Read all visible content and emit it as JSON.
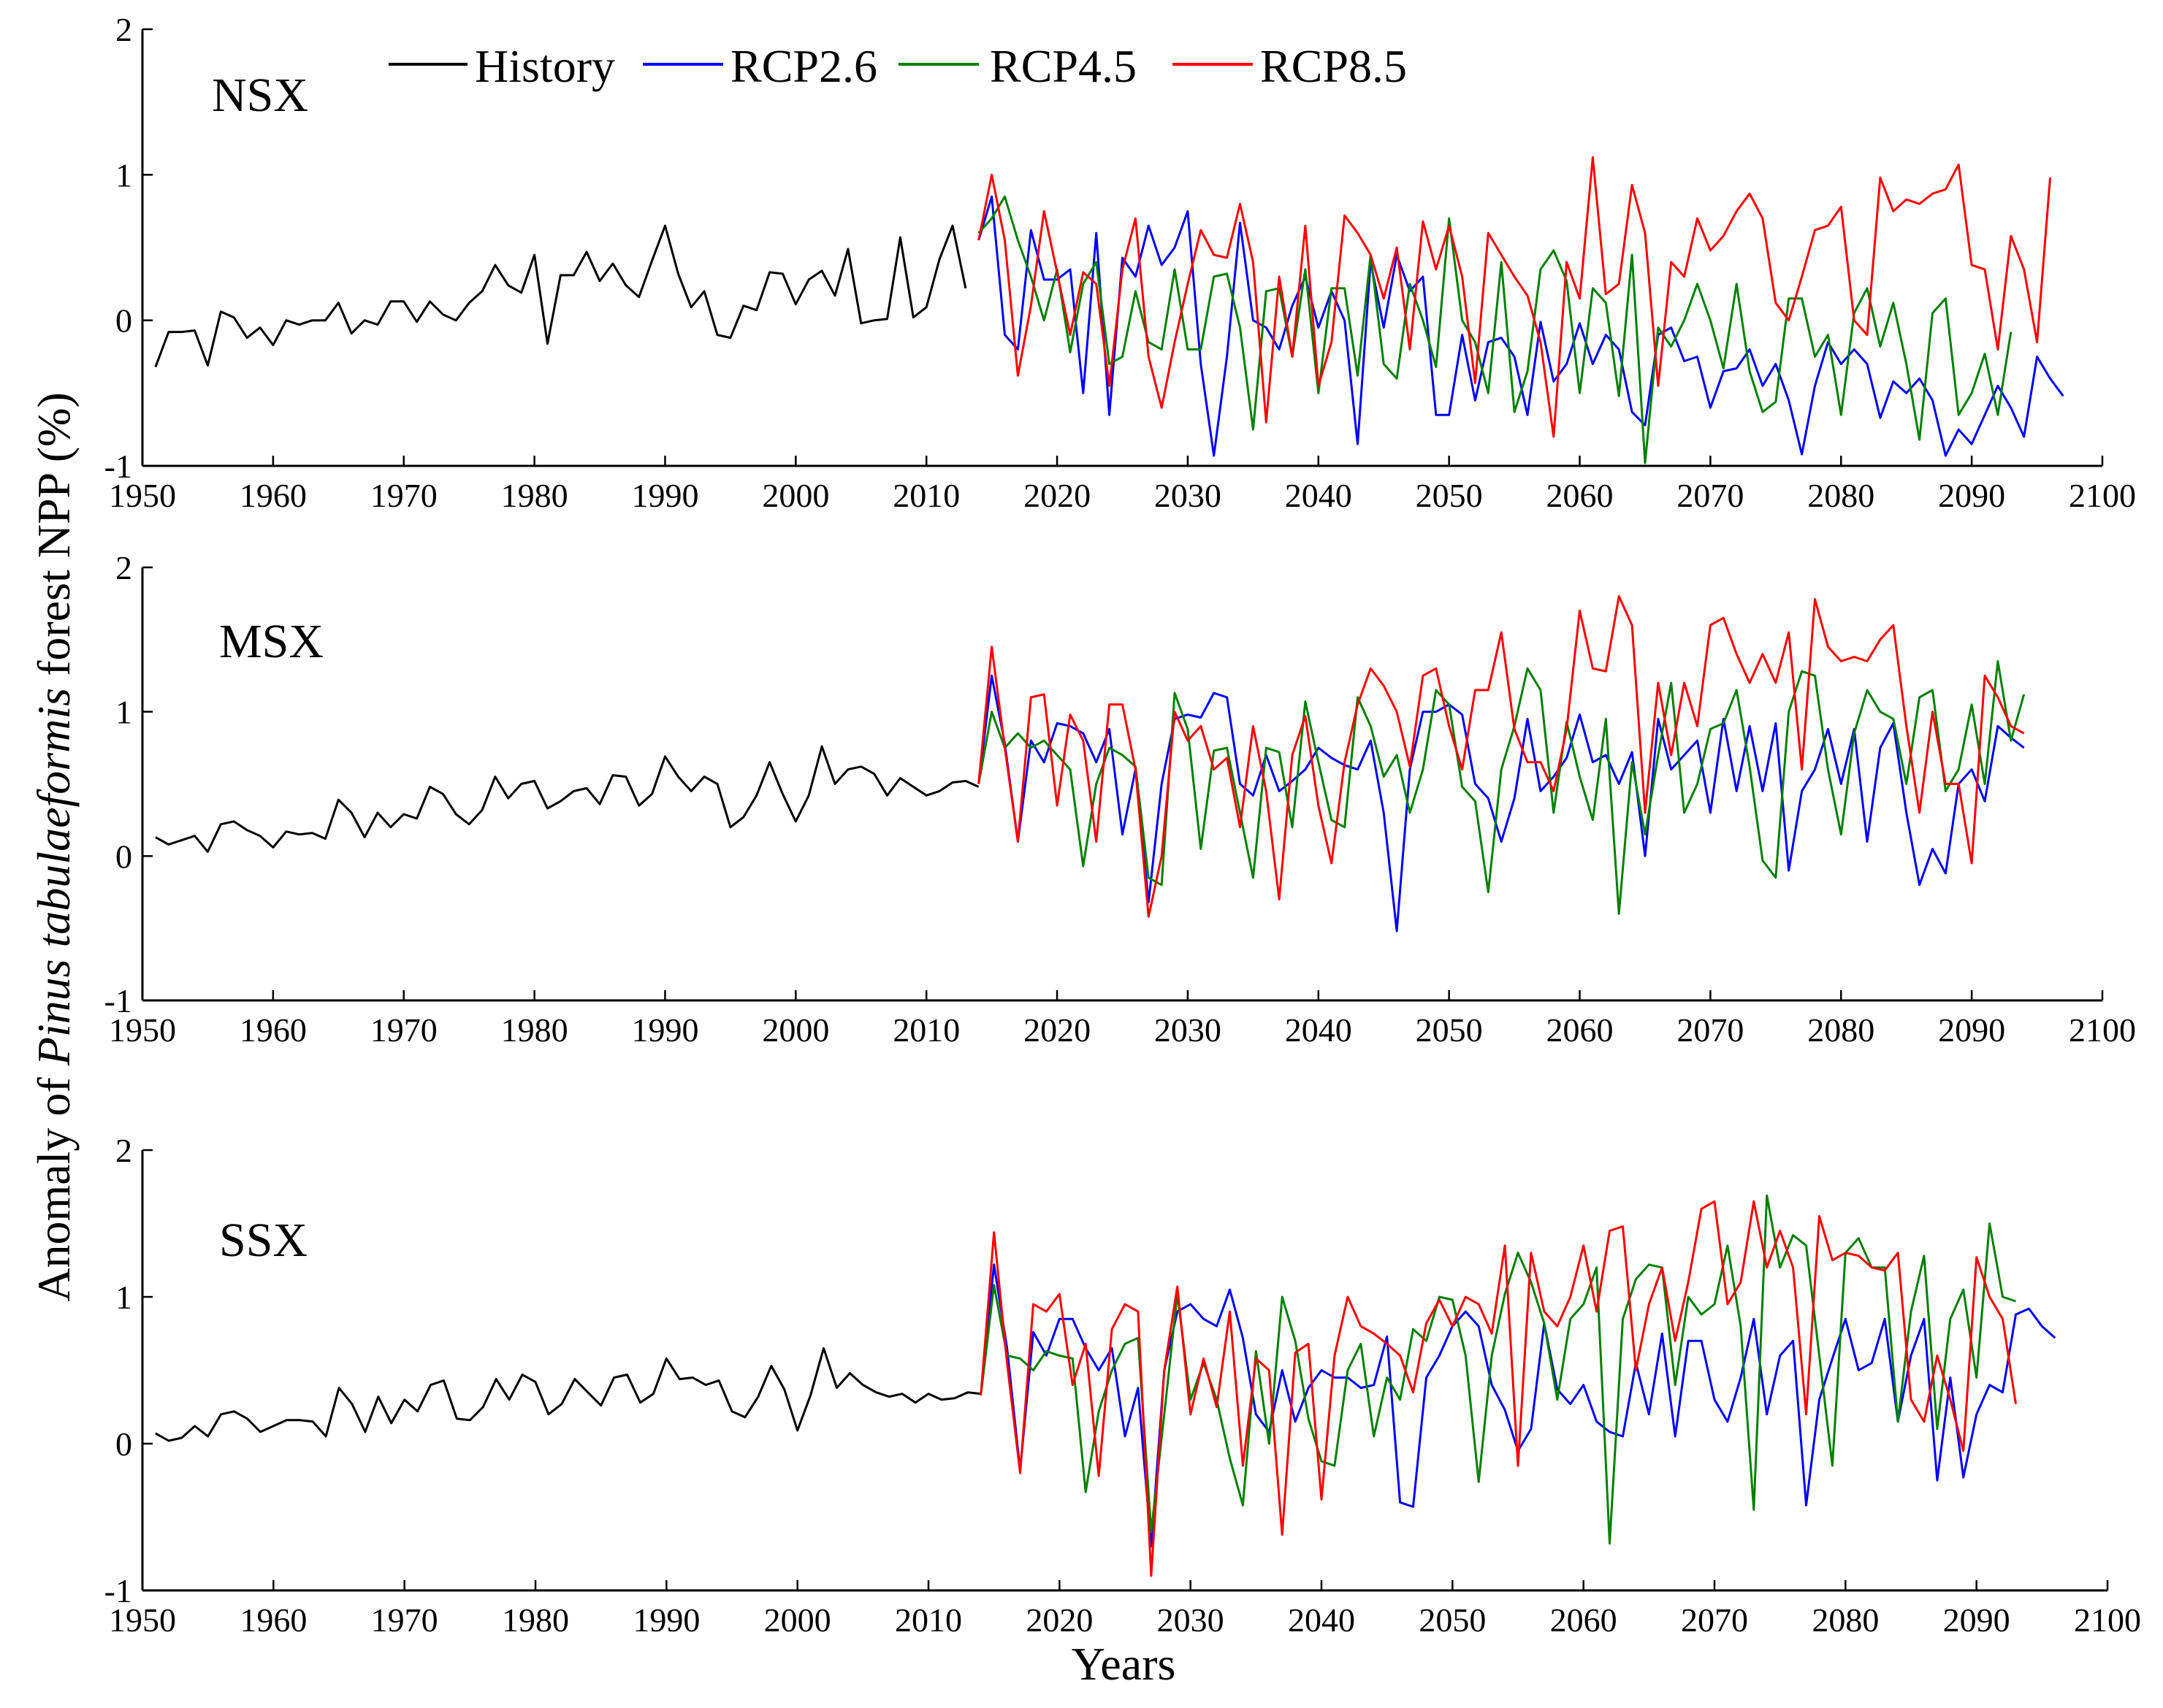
{
  "chart_data": {
    "type": "line",
    "ylabel_prefix": "Anomaly of",
    "ylabel_species": "Pinus tabulaeformis",
    "ylabel_suffix": "forest NPP (%)",
    "xlabel": "Years",
    "xlim": [
      1950,
      2100
    ],
    "ylim": [
      -1,
      2
    ],
    "x_ticks": [
      1950,
      1960,
      1970,
      1980,
      1990,
      2000,
      2010,
      2020,
      2030,
      2040,
      2050,
      2060,
      2070,
      2080,
      2090,
      2100
    ],
    "y_ticks": [
      -1,
      0,
      1,
      2
    ],
    "legend": [
      {
        "name": "History",
        "color": "#000000"
      },
      {
        "name": "RCP2.6",
        "color": "#0000ff"
      },
      {
        "name": "RCP4.5",
        "color": "#008000"
      },
      {
        "name": "RCP8.5",
        "color": "#ff0000"
      }
    ],
    "panels": [
      {
        "title": "NSX",
        "history": {
          "start": 1951,
          "values": [
            -0.32,
            -0.08,
            -0.08,
            -0.07,
            -0.31,
            0.06,
            0.02,
            -0.12,
            -0.05,
            -0.17,
            0.0,
            -0.03,
            0.0,
            0.0,
            0.12,
            -0.09,
            0.0,
            -0.03,
            0.13,
            0.13,
            -0.01,
            0.13,
            0.04,
            0.0,
            0.12,
            0.2,
            0.38,
            0.24,
            0.19,
            0.45,
            -0.16,
            0.31,
            0.31,
            0.47,
            0.27,
            0.39,
            0.24,
            0.16,
            0.41,
            0.65,
            0.32,
            0.09,
            0.2,
            -0.1,
            -0.12,
            0.1,
            0.07,
            0.33,
            0.32,
            0.11,
            0.28,
            0.34,
            0.17,
            0.49,
            -0.02,
            0.0,
            0.01,
            0.57,
            0.02,
            0.09,
            0.42,
            0.65,
            0.22
          ]
        },
        "future": {
          "start": 2014,
          "RCP2.6": [
            0.55,
            0.85,
            -0.1,
            -0.2,
            0.62,
            0.28,
            0.28,
            0.35,
            -0.5,
            0.6,
            -0.65,
            0.43,
            0.3,
            0.65,
            0.38,
            0.5,
            0.75,
            -0.3,
            -0.93,
            -0.25,
            0.67,
            0.0,
            -0.05,
            -0.2,
            0.1,
            0.3,
            -0.05,
            0.2,
            0.0,
            -0.85,
            0.4,
            -0.05,
            0.45,
            0.2,
            0.3,
            -0.65,
            -0.65,
            -0.1,
            -0.55,
            -0.15,
            -0.12,
            -0.25,
            -0.65,
            -0.01,
            -0.42,
            -0.3,
            -0.02,
            -0.3,
            -0.1,
            -0.2,
            -0.63,
            -0.72,
            -0.1,
            -0.05,
            -0.28,
            -0.25,
            -0.6,
            -0.35,
            -0.33,
            -0.2,
            -0.45,
            -0.3,
            -0.55,
            -0.92,
            -0.45,
            -0.15,
            -0.3,
            -0.2,
            -0.3,
            -0.67,
            -0.42,
            -0.5,
            -0.4,
            -0.55,
            -0.93,
            -0.75,
            -0.85,
            -0.65,
            -0.45,
            -0.6,
            -0.8,
            -0.25,
            -0.4,
            -0.52
          ],
          "RCP4.5": [
            0.6,
            0.7,
            0.85,
            0.55,
            0.3,
            0.0,
            0.35,
            -0.22,
            0.25,
            0.4,
            -0.3,
            -0.25,
            0.2,
            -0.15,
            -0.2,
            0.35,
            -0.2,
            -0.2,
            0.3,
            0.32,
            -0.05,
            -0.75,
            0.2,
            0.22,
            -0.25,
            0.35,
            -0.5,
            0.22,
            0.22,
            -0.38,
            0.45,
            -0.3,
            -0.4,
            0.25,
            0.0,
            -0.32,
            0.7,
            0.0,
            -0.15,
            -0.5,
            0.4,
            -0.63,
            -0.35,
            0.35,
            0.48,
            0.27,
            -0.5,
            0.22,
            0.12,
            -0.52,
            0.45,
            -0.98,
            -0.05,
            -0.18,
            0.0,
            0.25,
            0.0,
            -0.33,
            0.25,
            -0.35,
            -0.63,
            -0.56,
            0.15,
            0.15,
            -0.25,
            -0.1,
            -0.65,
            0.05,
            0.22,
            -0.18,
            0.12,
            -0.3,
            -0.82,
            0.05,
            0.15,
            -0.65,
            -0.5,
            -0.23,
            -0.65,
            -0.08
          ],
          "RCP8.5": [
            0.55,
            1.0,
            0.55,
            -0.38,
            0.1,
            0.75,
            0.33,
            -0.1,
            0.33,
            0.25,
            -0.45,
            0.35,
            0.7,
            -0.25,
            -0.6,
            -0.15,
            0.25,
            0.62,
            0.45,
            0.43,
            0.8,
            0.4,
            -0.7,
            0.3,
            -0.25,
            0.65,
            -0.45,
            -0.15,
            0.72,
            0.6,
            0.45,
            0.15,
            0.5,
            -0.2,
            0.68,
            0.35,
            0.65,
            0.3,
            -0.43,
            0.6,
            0.45,
            0.3,
            0.17,
            -0.15,
            -0.8,
            0.4,
            0.15,
            1.12,
            0.18,
            0.25,
            0.93,
            0.6,
            -0.45,
            0.4,
            0.3,
            0.7,
            0.48,
            0.58,
            0.75,
            0.87,
            0.7,
            0.12,
            0.0,
            0.3,
            0.62,
            0.65,
            0.78,
            0.0,
            -0.1,
            0.98,
            0.75,
            0.83,
            0.8,
            0.87,
            0.9,
            1.07,
            0.38,
            0.35,
            -0.2,
            0.58,
            0.35,
            -0.15,
            0.98
          ]
        }
      },
      {
        "title": "MSX",
        "history": {
          "start": 1951,
          "values": [
            0.13,
            0.08,
            0.11,
            0.14,
            0.03,
            0.22,
            0.24,
            0.18,
            0.14,
            0.06,
            0.17,
            0.15,
            0.16,
            0.12,
            0.39,
            0.3,
            0.13,
            0.3,
            0.2,
            0.29,
            0.26,
            0.48,
            0.43,
            0.29,
            0.22,
            0.32,
            0.55,
            0.4,
            0.5,
            0.52,
            0.33,
            0.38,
            0.45,
            0.47,
            0.36,
            0.56,
            0.55,
            0.35,
            0.43,
            0.69,
            0.55,
            0.45,
            0.55,
            0.5,
            0.2,
            0.27,
            0.42,
            0.65,
            0.43,
            0.24,
            0.42,
            0.76,
            0.5,
            0.6,
            0.62,
            0.57,
            0.42,
            0.54,
            0.48,
            0.42,
            0.45,
            0.51,
            0.52,
            0.48
          ]
        },
        "future": {
          "start": 2014,
          "RCP2.6": [
            0.5,
            1.25,
            0.78,
            0.1,
            0.8,
            0.65,
            0.92,
            0.9,
            0.85,
            0.65,
            0.88,
            0.15,
            0.6,
            -0.32,
            0.5,
            0.95,
            0.98,
            0.96,
            1.13,
            1.1,
            0.5,
            0.42,
            0.7,
            0.45,
            0.52,
            0.6,
            0.75,
            0.68,
            0.63,
            0.6,
            0.8,
            0.3,
            -0.52,
            0.6,
            1.0,
            1.0,
            1.05,
            0.98,
            0.5,
            0.4,
            0.1,
            0.4,
            0.95,
            0.45,
            0.55,
            0.68,
            0.98,
            0.65,
            0.7,
            0.5,
            0.72,
            0.0,
            0.95,
            0.6,
            0.7,
            0.8,
            0.3,
            0.95,
            0.45,
            0.9,
            0.45,
            0.92,
            -0.1,
            0.45,
            0.6,
            0.88,
            0.5,
            0.88,
            0.1,
            0.75,
            0.92,
            0.3,
            -0.2,
            0.05,
            -0.12,
            0.5,
            0.6,
            0.38,
            0.9,
            0.82,
            0.75
          ],
          "RCP4.5": [
            0.5,
            1.0,
            0.75,
            0.85,
            0.75,
            0.8,
            0.7,
            0.6,
            -0.07,
            0.5,
            0.75,
            0.7,
            0.62,
            -0.15,
            -0.2,
            1.13,
            0.88,
            0.05,
            0.73,
            0.75,
            0.3,
            -0.15,
            0.75,
            0.72,
            0.2,
            1.07,
            0.65,
            0.25,
            0.2,
            1.1,
            0.9,
            0.55,
            0.7,
            0.3,
            0.6,
            1.15,
            1.05,
            0.48,
            0.38,
            -0.25,
            0.6,
            0.9,
            1.3,
            1.15,
            0.3,
            0.93,
            0.55,
            0.25,
            0.95,
            -0.4,
            0.65,
            0.15,
            0.7,
            1.2,
            0.3,
            0.5,
            0.88,
            0.92,
            1.15,
            0.62,
            -0.03,
            -0.15,
            1.0,
            1.28,
            1.25,
            0.6,
            0.15,
            0.85,
            1.15,
            1.0,
            0.95,
            0.5,
            1.1,
            1.15,
            0.45,
            0.6,
            1.05,
            0.5,
            1.35,
            0.8,
            1.12
          ],
          "RCP8.5": [
            0.5,
            1.45,
            0.75,
            0.1,
            1.1,
            1.12,
            0.35,
            0.98,
            0.8,
            0.1,
            1.05,
            1.05,
            0.6,
            -0.42,
            0.0,
            1.0,
            0.8,
            0.9,
            0.6,
            0.68,
            0.2,
            0.9,
            0.45,
            -0.3,
            0.7,
            0.97,
            0.35,
            -0.05,
            0.65,
            1.05,
            1.3,
            1.18,
            1.0,
            0.62,
            1.25,
            1.3,
            0.9,
            0.6,
            1.15,
            1.15,
            1.55,
            0.88,
            0.65,
            0.65,
            0.45,
            0.88,
            1.7,
            1.3,
            1.28,
            1.8,
            1.6,
            0.3,
            1.2,
            0.7,
            1.2,
            0.9,
            1.6,
            1.65,
            1.4,
            1.2,
            1.4,
            1.2,
            1.55,
            0.6,
            1.78,
            1.45,
            1.35,
            1.38,
            1.35,
            1.5,
            1.6,
            0.9,
            0.3,
            1.0,
            0.5,
            0.5,
            -0.05,
            1.25,
            1.1,
            0.9,
            0.85
          ]
        }
      },
      {
        "title": "SSX",
        "history": {
          "start": 1951,
          "values": [
            0.07,
            0.02,
            0.04,
            0.12,
            0.05,
            0.2,
            0.22,
            0.17,
            0.08,
            0.12,
            0.16,
            0.16,
            0.15,
            0.05,
            0.38,
            0.27,
            0.08,
            0.32,
            0.14,
            0.3,
            0.22,
            0.4,
            0.43,
            0.17,
            0.16,
            0.25,
            0.44,
            0.3,
            0.47,
            0.42,
            0.2,
            0.27,
            0.44,
            0.35,
            0.26,
            0.45,
            0.47,
            0.28,
            0.34,
            0.58,
            0.44,
            0.45,
            0.4,
            0.43,
            0.22,
            0.18,
            0.32,
            0.53,
            0.37,
            0.09,
            0.33,
            0.65,
            0.38,
            0.48,
            0.4,
            0.35,
            0.32,
            0.34,
            0.28,
            0.34,
            0.3,
            0.31,
            0.35,
            0.34
          ]
        },
        "future": {
          "start": 2014,
          "RCP2.6": [
            0.33,
            1.22,
            0.65,
            -0.18,
            0.76,
            0.6,
            0.85,
            0.85,
            0.65,
            0.5,
            0.65,
            0.05,
            0.38,
            -0.7,
            0.5,
            0.9,
            0.95,
            0.85,
            0.8,
            1.05,
            0.72,
            0.2,
            0.08,
            0.5,
            0.15,
            0.38,
            0.5,
            0.45,
            0.45,
            0.38,
            0.4,
            0.73,
            -0.4,
            -0.43,
            0.45,
            0.6,
            0.8,
            0.9,
            0.8,
            0.4,
            0.23,
            -0.05,
            0.1,
            0.82,
            0.37,
            0.27,
            0.4,
            0.15,
            0.08,
            0.05,
            0.55,
            0.2,
            0.75,
            0.05,
            0.7,
            0.7,
            0.3,
            0.15,
            0.45,
            0.85,
            0.2,
            0.6,
            0.7,
            -0.42,
            0.3,
            0.58,
            0.85,
            0.5,
            0.55,
            0.85,
            0.15,
            0.6,
            0.85,
            -0.25,
            0.45,
            -0.23,
            0.2,
            0.4,
            0.35,
            0.88,
            0.92,
            0.8,
            0.72
          ],
          "RCP4.5": [
            0.33,
            1.08,
            0.6,
            0.58,
            0.5,
            0.63,
            0.6,
            0.58,
            -0.33,
            0.22,
            0.5,
            0.68,
            0.72,
            -0.6,
            0.2,
            1.02,
            0.3,
            0.55,
            0.3,
            -0.1,
            -0.42,
            0.63,
            0.0,
            1.0,
            0.7,
            0.17,
            -0.12,
            -0.15,
            0.5,
            0.68,
            0.05,
            0.45,
            0.3,
            0.78,
            0.7,
            1.0,
            0.98,
            0.6,
            -0.26,
            0.6,
            1.02,
            1.3,
            1.1,
            0.82,
            0.3,
            0.85,
            0.95,
            1.2,
            -0.68,
            0.85,
            1.12,
            1.22,
            1.2,
            0.4,
            1.0,
            0.88,
            0.95,
            1.35,
            0.8,
            -0.45,
            1.69,
            1.2,
            1.42,
            1.35,
            0.6,
            -0.15,
            1.3,
            1.4,
            1.2,
            1.2,
            0.15,
            0.9,
            1.28,
            0.1,
            0.85,
            1.05,
            0.45,
            1.5,
            1.0,
            0.97
          ],
          "RCP8.5": [
            0.33,
            1.44,
            0.55,
            -0.2,
            0.95,
            0.9,
            1.02,
            0.4,
            0.68,
            -0.22,
            0.78,
            0.95,
            0.9,
            -0.9,
            0.5,
            1.07,
            0.2,
            0.58,
            0.25,
            0.9,
            -0.15,
            0.58,
            0.5,
            -0.62,
            0.62,
            0.68,
            -0.38,
            0.6,
            1.0,
            0.8,
            0.75,
            0.68,
            0.6,
            0.35,
            0.82,
            0.98,
            0.8,
            1.0,
            0.95,
            0.75,
            1.35,
            -0.15,
            1.3,
            0.9,
            0.8,
            1.0,
            1.35,
            0.9,
            1.45,
            1.48,
            0.5,
            0.95,
            1.2,
            0.7,
            1.1,
            1.6,
            1.65,
            0.95,
            1.1,
            1.65,
            1.2,
            1.45,
            1.2,
            0.2,
            1.55,
            1.25,
            1.3,
            1.28,
            1.2,
            1.18,
            1.3,
            0.3,
            0.15,
            0.6,
            0.3,
            -0.05,
            1.27,
            1.0,
            0.85,
            0.27
          ]
        }
      }
    ]
  }
}
